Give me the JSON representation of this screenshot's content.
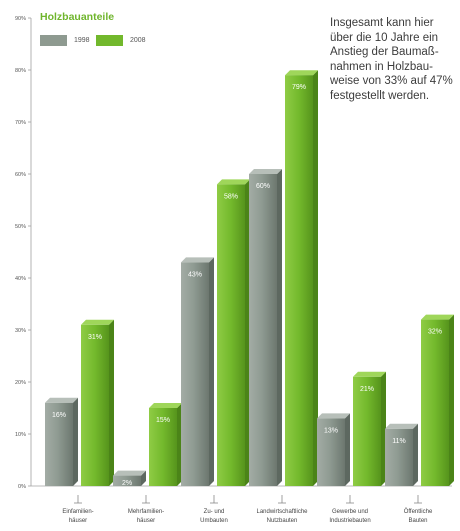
{
  "chart_data": {
    "type": "bar",
    "title": "Holzbauanteile",
    "categories": [
      [
        "Einfamilien-",
        "häuser"
      ],
      [
        "Mehrfamilien-",
        "häuser"
      ],
      [
        "Zu- und",
        "Umbauten"
      ],
      [
        "Landwirtschaftliche",
        "Nutzbauten"
      ],
      [
        "Gewerbe und",
        "Industriebauten"
      ],
      [
        "Öffentliche",
        "Bauten"
      ]
    ],
    "series": [
      {
        "name": "1998",
        "values": [
          16,
          2,
          43,
          60,
          13,
          11
        ],
        "labels": [
          "16%",
          "2%",
          "43%",
          "60%",
          "13%",
          "11%"
        ]
      },
      {
        "name": "2008",
        "values": [
          31,
          15,
          58,
          79,
          21,
          32
        ],
        "labels": [
          "31%",
          "15%",
          "58%",
          "79%",
          "21%",
          "32%"
        ]
      }
    ],
    "ylim": [
      0,
      90
    ],
    "yticks": [
      "0%",
      "10%",
      "20%",
      "30%",
      "40%",
      "50%",
      "60%",
      "70%",
      "80%",
      "90%"
    ],
    "legend_position": "top-left",
    "grid": false
  },
  "annotation": {
    "lines": [
      "Insgesamt kann hier",
      "über die 10 Jahre ein",
      "Anstieg der Baumaß-",
      "nahmen in Holzbau-",
      "weise von 33% auf 47%",
      "festgestellt werden."
    ]
  },
  "colors": {
    "series_1998": "#8e9a90",
    "series_2008": "#72b82c",
    "title": "#6fb52c",
    "axis": "#9a9a9a"
  }
}
